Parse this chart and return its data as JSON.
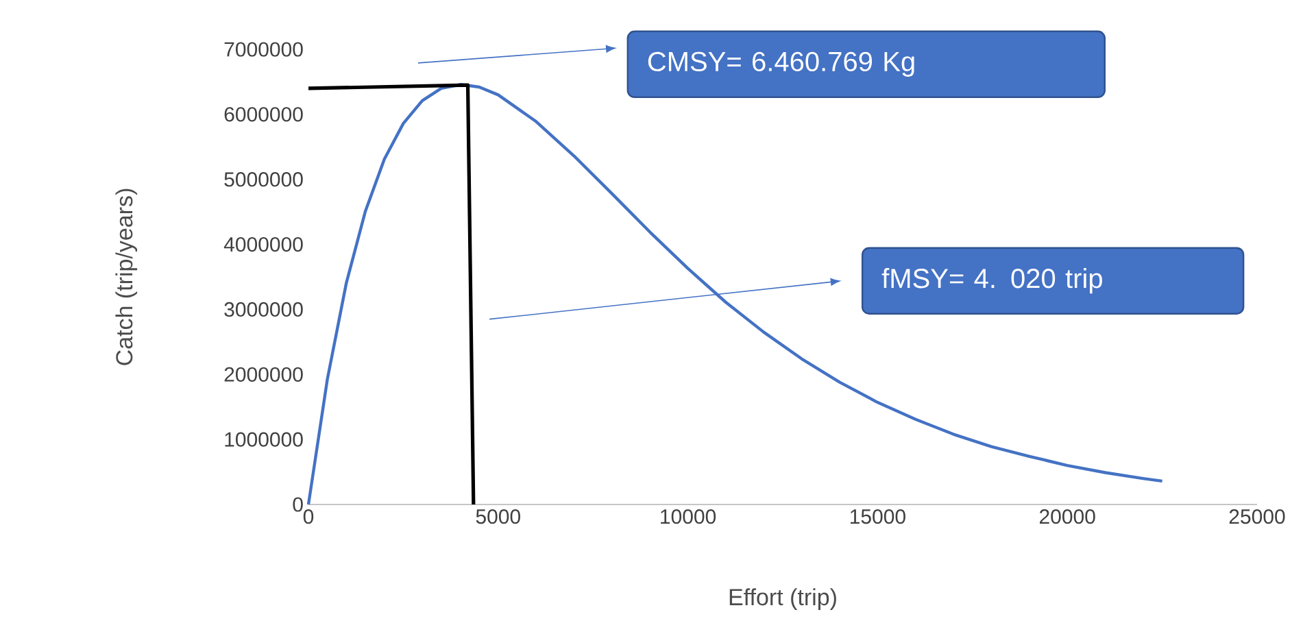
{
  "chart_data": {
    "type": "line",
    "xlabel": "Effort (trip)",
    "ylabel": "Catch (trip/years)",
    "annotations": [
      "CMSY= 6.460.769 Kg",
      "fMSY= 4. 020 trip"
    ],
    "xlim": [
      0,
      25000
    ],
    "xticks": [
      0,
      5000,
      10000,
      15000,
      20000,
      25000
    ],
    "ylim": [
      0,
      7000000
    ],
    "yticks": [
      0,
      1000000,
      2000000,
      3000000,
      4000000,
      5000000,
      6000000,
      7000000
    ],
    "grid": false,
    "marker": "none",
    "line_style": "solid",
    "series": [
      {
        "color": "#4472c4",
        "x": [
          0,
          500,
          1000,
          1500,
          2000,
          2500,
          3000,
          3500,
          4020,
          4500,
          5000,
          6000,
          7000,
          8000,
          9000,
          10000,
          11000,
          12000,
          13000,
          14000,
          15000,
          16000,
          17000,
          18000,
          19000,
          20000,
          21000,
          22000,
          22500
        ],
        "values": [
          0,
          1930000,
          3410000,
          4510000,
          5310000,
          5860000,
          6210000,
          6400000,
          6460000,
          6420000,
          6300000,
          5890000,
          5360000,
          4780000,
          4190000,
          3630000,
          3110000,
          2650000,
          2240000,
          1880000,
          1570000,
          1310000,
          1080000,
          890000,
          740000,
          600000,
          490000,
          400000,
          360000
        ]
      },
      {
        "color": "#000000",
        "x": [
          0,
          4200,
          4350
        ],
        "values": [
          6400000,
          6450000,
          0
        ]
      }
    ]
  }
}
